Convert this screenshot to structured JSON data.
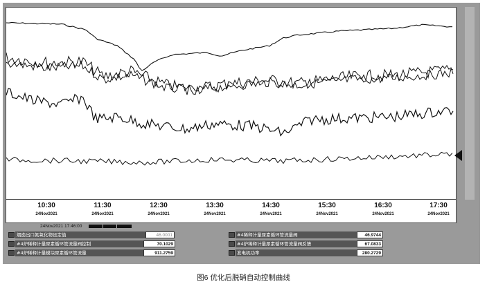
{
  "time_axis": {
    "labels": [
      {
        "time": "10:30",
        "date": "24Nov2021"
      },
      {
        "time": "11:30",
        "date": "24Nov2021"
      },
      {
        "time": "12:30",
        "date": "24Nov2021"
      },
      {
        "time": "13:30",
        "date": "24Nov2021"
      },
      {
        "time": "14:30",
        "date": "24Nov2021"
      },
      {
        "time": "15:30",
        "date": "24Nov2021"
      },
      {
        "time": "16:30",
        "date": "24Nov2021"
      },
      {
        "time": "17:30",
        "date": "24Nov2021"
      }
    ]
  },
  "cursor": {
    "timestamp": "24Nov2021  17:46:00"
  },
  "legend": [
    {
      "label": "烟囱出口氮氧化物设定值",
      "value": "46.0001"
    },
    {
      "label": "#4炉稀释计量尿素循环管流量阀控制",
      "value": "70.1029"
    },
    {
      "label": "#4炉稀释计量模块尿素循环管流量",
      "value": "911.2759"
    },
    {
      "label": "#4稀释计量尿素循环管流量阀",
      "value": "46.9744"
    },
    {
      "label": "#4炉稀释计量尿素循环管流量阀反馈",
      "value": "67.0833"
    },
    {
      "label": "发电机功率",
      "value": "280.2729"
    }
  ],
  "caption": "图6   优化后脱硝自动控制曲线",
  "colors": {
    "trace": "#111111",
    "panel": "#9a9a9a",
    "label_bg": "#555555"
  },
  "icons": {
    "marker": "left-pointing-triangle-marker"
  }
}
